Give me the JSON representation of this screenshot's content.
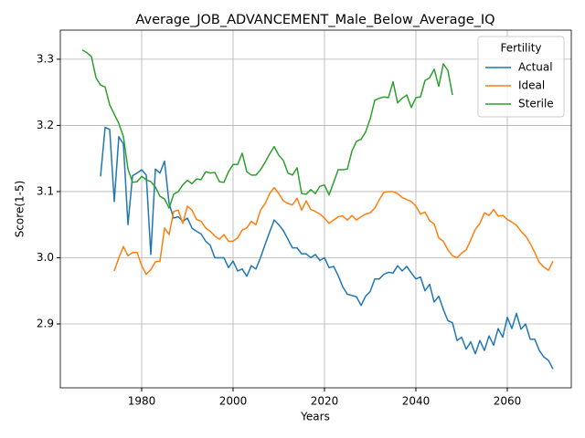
{
  "chart_data": {
    "type": "line",
    "title": "Average_JOB_ADVANCEMENT_Male_Below_Average_IQ",
    "x_label": "Years",
    "y_label": "Score(1-5)",
    "x": [
      1967,
      1968,
      1969,
      1970,
      1971,
      1972,
      1973,
      1974,
      1975,
      1976,
      1977,
      1978,
      1979,
      1980,
      1981,
      1982,
      1983,
      1984,
      1985,
      1986,
      1987,
      1988,
      1989,
      1990,
      1991,
      1992,
      1993,
      1994,
      1995,
      1996,
      1997,
      1998,
      1999,
      2000,
      2001,
      2002,
      2003,
      2004,
      2005,
      2006,
      2007,
      2008,
      2009,
      2010,
      2011,
      2012,
      2013,
      2014,
      2015,
      2016,
      2017,
      2018,
      2019,
      2020,
      2021,
      2022,
      2023,
      2024,
      2025,
      2026,
      2027,
      2028,
      2029,
      2030,
      2031,
      2032,
      2033,
      2034,
      2035,
      2036,
      2037,
      2038,
      2039,
      2040,
      2041,
      2042,
      2043,
      2044,
      2045,
      2046,
      2047,
      2048,
      2049,
      2050,
      2051,
      2052,
      2053,
      2054,
      2055,
      2056,
      2057,
      2058,
      2059,
      2060,
      2061,
      2062,
      2063,
      2064,
      2065,
      2066,
      2067,
      2068,
      2069,
      2070
    ],
    "series": [
      {
        "name": "Actual",
        "color": "#1f77b4",
        "values": [
          null,
          null,
          null,
          null,
          3.123,
          3.197,
          3.194,
          3.085,
          3.183,
          3.172,
          3.05,
          3.124,
          3.128,
          3.133,
          3.125,
          3.005,
          3.134,
          3.128,
          3.146,
          3.082,
          3.06,
          3.062,
          3.055,
          3.06,
          3.045,
          3.04,
          3.036,
          3.025,
          3.019,
          3.0,
          3.0,
          3.0,
          2.985,
          2.995,
          2.98,
          2.983,
          2.972,
          2.988,
          2.983,
          3.0,
          3.02,
          3.039,
          3.057,
          3.05,
          3.041,
          3.028,
          3.015,
          3.015,
          3.006,
          3.006,
          3.0,
          3.005,
          2.996,
          3.0,
          2.985,
          2.987,
          2.973,
          2.956,
          2.945,
          2.943,
          2.941,
          2.928,
          2.942,
          2.949,
          2.968,
          2.968,
          2.975,
          2.978,
          2.977,
          2.988,
          2.98,
          2.987,
          2.977,
          2.968,
          2.971,
          2.95,
          2.96,
          2.933,
          2.942,
          2.922,
          2.905,
          2.902,
          2.875,
          2.88,
          2.862,
          2.873,
          2.855,
          2.875,
          2.86,
          2.882,
          2.868,
          2.893,
          2.88,
          2.91,
          2.893,
          2.916,
          2.892,
          2.9,
          2.877,
          2.877,
          2.86,
          2.85,
          2.845,
          2.832
        ]
      },
      {
        "name": "Ideal",
        "color": "#ff7f0e",
        "values": [
          null,
          null,
          null,
          null,
          null,
          null,
          null,
          2.98,
          3.0,
          3.017,
          3.003,
          3.008,
          3.008,
          2.988,
          2.975,
          2.982,
          2.994,
          2.995,
          3.045,
          3.035,
          3.07,
          3.072,
          3.052,
          3.078,
          3.072,
          3.058,
          3.055,
          3.045,
          3.04,
          3.033,
          3.028,
          3.035,
          3.025,
          3.025,
          3.03,
          3.042,
          3.045,
          3.055,
          3.05,
          3.072,
          3.082,
          3.097,
          3.106,
          3.097,
          3.086,
          3.082,
          3.08,
          3.09,
          3.072,
          3.086,
          3.073,
          3.07,
          3.066,
          3.06,
          3.052,
          3.057,
          3.062,
          3.063,
          3.057,
          3.064,
          3.057,
          3.062,
          3.066,
          3.068,
          3.075,
          3.088,
          3.099,
          3.1,
          3.1,
          3.097,
          3.091,
          3.088,
          3.085,
          3.078,
          3.066,
          3.069,
          3.056,
          3.051,
          3.03,
          3.025,
          3.012,
          3.003,
          3.0,
          3.007,
          3.012,
          3.027,
          3.043,
          3.052,
          3.068,
          3.064,
          3.073,
          3.063,
          3.064,
          3.058,
          3.054,
          3.049,
          3.04,
          3.033,
          3.022,
          3.008,
          2.993,
          2.986,
          2.981,
          2.995
        ]
      },
      {
        "name": "Sterile",
        "color": "#2ca02c",
        "values": [
          3.314,
          3.31,
          3.304,
          3.272,
          3.261,
          3.258,
          3.231,
          3.217,
          3.203,
          3.183,
          3.134,
          3.114,
          3.115,
          3.123,
          3.118,
          3.115,
          3.107,
          3.093,
          3.089,
          3.075,
          3.096,
          3.1,
          3.11,
          3.117,
          3.112,
          3.119,
          3.118,
          3.13,
          3.128,
          3.129,
          3.115,
          3.114,
          3.13,
          3.141,
          3.141,
          3.158,
          3.13,
          3.125,
          3.125,
          3.133,
          3.144,
          3.157,
          3.168,
          3.155,
          3.147,
          3.128,
          3.125,
          3.136,
          3.097,
          3.096,
          3.103,
          3.097,
          3.108,
          3.11,
          3.095,
          3.114,
          3.133,
          3.133,
          3.134,
          3.161,
          3.176,
          3.179,
          3.19,
          3.21,
          3.238,
          3.241,
          3.243,
          3.242,
          3.266,
          3.234,
          3.241,
          3.246,
          3.227,
          3.242,
          3.243,
          3.268,
          3.272,
          3.285,
          3.259,
          3.293,
          3.283,
          3.246,
          null,
          null,
          null,
          null,
          null,
          null,
          null,
          null,
          null,
          null,
          null,
          null,
          null,
          null,
          null,
          null,
          null,
          null,
          null,
          null,
          null,
          null
        ]
      }
    ],
    "legend_title": "Fertility",
    "legend": "upper right",
    "grid": true,
    "xlim": [
      1962.2,
      2074
    ],
    "xticks": [
      1980,
      2000,
      2020,
      2040,
      2060
    ],
    "ylim": [
      2.8035,
      3.344
    ],
    "yticks": [
      2.9,
      {
        "value": 3,
        "label": "3.0"
      },
      3.1,
      3.2,
      3.3
    ]
  }
}
